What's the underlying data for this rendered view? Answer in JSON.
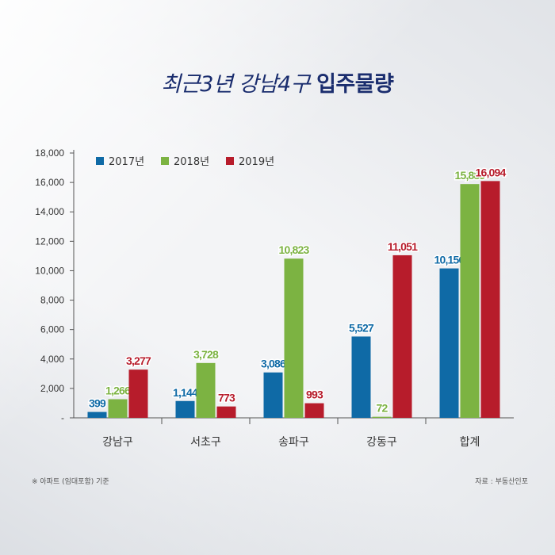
{
  "title": {
    "part1": "최근3년 강남4구",
    "part2": "입주물량"
  },
  "chart_data": {
    "type": "bar",
    "categories": [
      "강남구",
      "서초구",
      "송파구",
      "강동구",
      "합계"
    ],
    "series": [
      {
        "name": "2017년",
        "color": "#0f6aa6",
        "values": [
          399,
          1144,
          3086,
          5527,
          10156
        ],
        "labels": [
          "399",
          "1,144",
          "3,086",
          "5,527",
          "10,156"
        ]
      },
      {
        "name": "2018년",
        "color": "#7cb342",
        "values": [
          1266,
          3728,
          10823,
          72,
          15889
        ],
        "labels": [
          "1,266",
          "3,728",
          "10,823",
          "72",
          "15,889"
        ]
      },
      {
        "name": "2019년",
        "color": "#b71c2b",
        "values": [
          3277,
          773,
          993,
          11051,
          16094
        ],
        "labels": [
          "3,277",
          "773",
          "993",
          "11,051",
          "16,094"
        ]
      }
    ],
    "ylim": [
      0,
      18000
    ],
    "yticks": [
      0,
      2000,
      4000,
      6000,
      8000,
      10000,
      12000,
      14000,
      16000,
      18000
    ],
    "ytick_labels": [
      "-",
      "2,000",
      "4,000",
      "6,000",
      "8,000",
      "10,000",
      "12,000",
      "14,000",
      "16,000",
      "18,000"
    ],
    "legend_position": "top-left",
    "grid": false
  },
  "footnotes": {
    "left": "※ 아파트 (임대포함) 기준",
    "right": "자료 : 부동산인포"
  }
}
